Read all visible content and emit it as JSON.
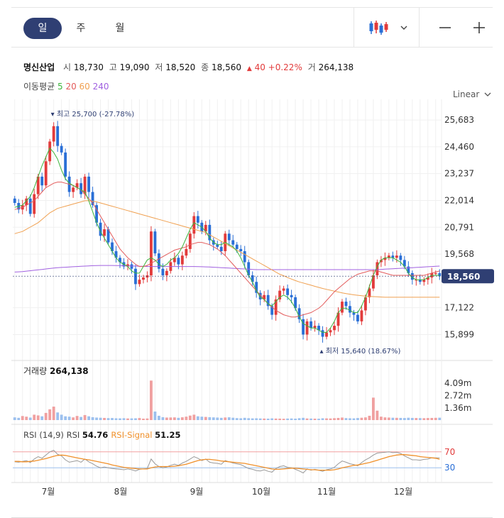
{
  "toolbar": {
    "tabs": [
      {
        "label": "일",
        "active": true
      },
      {
        "label": "주",
        "active": false
      },
      {
        "label": "월",
        "active": false
      }
    ],
    "chart_type_icon": "candlestick-icon",
    "zoom_out_icon": "minus-icon",
    "zoom_in_icon": "plus-icon"
  },
  "stock": {
    "name": "명신산업",
    "open_label": "시",
    "open": "18,730",
    "high_label": "고",
    "high": "19,090",
    "low_label": "저",
    "low": "18,520",
    "close_label": "종",
    "close": "18,560",
    "change": "40",
    "change_pct": "+0.22%",
    "volume_label": "거",
    "volume": "264,138"
  },
  "ma_legend": {
    "label": "이동평균",
    "items": [
      {
        "period": "5",
        "color": "#3cb43c"
      },
      {
        "period": "20",
        "color": "#e35b5b"
      },
      {
        "period": "60",
        "color": "#f0a050"
      },
      {
        "period": "240",
        "color": "#a060e0"
      }
    ]
  },
  "scale_mode": "Linear",
  "colors": {
    "up": "#e23b3b",
    "down": "#2a6fd6",
    "price_tag": "#2f3f73",
    "rsi": "#999999",
    "rsi_signal": "#f0902a"
  },
  "chart_data": {
    "type": "candlestick",
    "x_axis_labels": [
      "7월",
      "8월",
      "9월",
      "10월",
      "11월",
      "12월"
    ],
    "y_ticks": [
      "25,683",
      "24,460",
      "23,237",
      "22,014",
      "20,791",
      "19,568",
      "17,122",
      "15,899"
    ],
    "y_tick_values": [
      25683,
      24460,
      23237,
      22014,
      20791,
      19568,
      17122,
      15899
    ],
    "ylim": [
      15300,
      26300
    ],
    "current_price_label": "18,560",
    "current_price": 18560,
    "max_annotation": "최고 25,700 (-27.78%)",
    "min_annotation": "최저 15,640 (18.67%)",
    "close_series": [
      21900,
      21600,
      21800,
      22100,
      21400,
      22300,
      23100,
      22700,
      23800,
      24700,
      25400,
      24500,
      24200,
      23100,
      22400,
      22600,
      22800,
      22300,
      23100,
      22400,
      21800,
      21000,
      20400,
      20700,
      20100,
      19700,
      19400,
      19200,
      19000,
      19100,
      18900,
      18200,
      18400,
      18500,
      18600,
      20600,
      19600,
      18900,
      18600,
      18800,
      19200,
      19400,
      19100,
      19500,
      19800,
      20500,
      21300,
      21000,
      20600,
      20900,
      20200,
      20000,
      19900,
      19700,
      20500,
      20200,
      20000,
      19800,
      19700,
      19200,
      18600,
      18300,
      17800,
      17500,
      17700,
      17200,
      16800,
      17500,
      17900,
      18000,
      17700,
      17600,
      17100,
      16600,
      15900,
      16500,
      16200,
      16300,
      16100,
      15800,
      16000,
      16100,
      16300,
      16900,
      17400,
      17200,
      16900,
      16800,
      16500,
      17000,
      17600,
      18000,
      18600,
      19200,
      19300,
      19400,
      19500,
      19400,
      19500,
      19300,
      19000,
      18700,
      18400,
      18400,
      18300,
      18400,
      18500,
      18700,
      18700,
      18560
    ],
    "ma5": [
      21700,
      21750,
      21800,
      22000,
      22200,
      22600,
      23100,
      23600,
      24000,
      24400,
      24200,
      23900,
      23400,
      23000,
      22800,
      22700,
      22600,
      22500,
      22400,
      22000,
      21500,
      21000,
      20600,
      20300,
      20000,
      19700,
      19400,
      19200,
      19100,
      19000,
      18800,
      18700,
      18700,
      19000,
      19300,
      19400,
      19300,
      19100,
      19000,
      19100,
      19300,
      19400,
      19600,
      19900,
      20300,
      20700,
      21000,
      20900,
      20800,
      20600,
      20300,
      20100,
      20000,
      20000,
      20100,
      20000,
      19900,
      19700,
      19400,
      19000,
      18600,
      18300,
      17900,
      17600,
      17500,
      17300,
      17200,
      17400,
      17600,
      17700,
      17600,
      17400,
      17100,
      16700,
      16400,
      16300,
      16200,
      16200,
      16100,
      16000,
      16000,
      16200,
      16500,
      16900,
      17100,
      17100,
      17000,
      16900,
      16900,
      17200,
      17600,
      18100,
      18600,
      19000,
      19300,
      19400,
      19400,
      19400,
      19300,
      19200,
      19000,
      18700,
      18500,
      18400,
      18400,
      18400,
      18500,
      18600,
      18600,
      18600
    ],
    "ma20": [
      21600,
      21650,
      21700,
      21800,
      21900,
      22000,
      22200,
      22400,
      22600,
      22700,
      22800,
      22850,
      22850,
      22800,
      22750,
      22700,
      22600,
      22500,
      22300,
      22100,
      21900,
      21600,
      21300,
      21000,
      20700,
      20400,
      20100,
      19800,
      19600,
      19400,
      19250,
      19100,
      19000,
      19000,
      19050,
      19150,
      19250,
      19350,
      19450,
      19550,
      19650,
      19750,
      19800,
      19850,
      19900,
      20000,
      20050,
      20100,
      20100,
      20050,
      20000,
      19900,
      19800,
      19650,
      19500,
      19300,
      19100,
      18900,
      18700,
      18500,
      18300,
      18100,
      17900,
      17700,
      17500,
      17300,
      17150,
      17000,
      16900,
      16800,
      16750,
      16700,
      16700,
      16750,
      16800,
      16850,
      16900,
      17000,
      17100,
      17250,
      17450,
      17650,
      17850,
      18000,
      18150,
      18300,
      18450,
      18550,
      18650,
      18700,
      18750,
      18800,
      18800,
      18800,
      18750,
      18700,
      18650,
      18600,
      18600,
      18600,
      18600,
      18600,
      18600,
      18600,
      18600,
      18600,
      18650,
      18700,
      18750,
      18800
    ],
    "ma60": [
      20500,
      20550,
      20600,
      20700,
      20800,
      20900,
      21000,
      21150,
      21300,
      21450,
      21550,
      21650,
      21700,
      21750,
      21800,
      21850,
      21900,
      21950,
      22000,
      22000,
      21980,
      21950,
      21900,
      21850,
      21800,
      21750,
      21700,
      21650,
      21600,
      21550,
      21500,
      21450,
      21400,
      21350,
      21300,
      21250,
      21200,
      21150,
      21100,
      21050,
      21000,
      20950,
      20900,
      20850,
      20800,
      20750,
      20700,
      20650,
      20600,
      20550,
      20450,
      20350,
      20250,
      20150,
      20050,
      19950,
      19850,
      19750,
      19650,
      19550,
      19450,
      19350,
      19250,
      19150,
      19050,
      18950,
      18850,
      18750,
      18650,
      18580,
      18500,
      18430,
      18360,
      18300,
      18250,
      18200,
      18150,
      18100,
      18050,
      18000,
      17960,
      17920,
      17880,
      17840,
      17800,
      17770,
      17740,
      17710,
      17690,
      17670,
      17650,
      17640,
      17630,
      17620,
      17610,
      17600,
      17600,
      17600,
      17600,
      17600,
      17600,
      17600,
      17600,
      17600,
      17600,
      17600,
      17600,
      17600,
      17600,
      17600
    ],
    "ma240": [
      18750,
      18760,
      18770,
      18790,
      18810,
      18830,
      18850,
      18870,
      18890,
      18910,
      18930,
      18950,
      18960,
      18970,
      18980,
      18990,
      19000,
      19010,
      19020,
      19030,
      19040,
      19045,
      19050,
      19050,
      19050,
      19050,
      19045,
      19040,
      19035,
      19030,
      19025,
      19020,
      19015,
      19010,
      19005,
      19000,
      19000,
      19000,
      19000,
      19000,
      19000,
      19000,
      19000,
      19000,
      19000,
      19000,
      19000,
      18995,
      18990,
      18985,
      18980,
      18970,
      18960,
      18950,
      18940,
      18930,
      18920,
      18910,
      18900,
      18890,
      18880,
      18870,
      18860,
      18860,
      18860,
      18860,
      18860,
      18860,
      18860,
      18860,
      18860,
      18860,
      18860,
      18860,
      18860,
      18860,
      18860,
      18860,
      18860,
      18860,
      18860,
      18860,
      18860,
      18860,
      18860,
      18860,
      18860,
      18860,
      18860,
      18860,
      18860,
      18860,
      18860,
      18860,
      18870,
      18880,
      18890,
      18900,
      18910,
      18920,
      18930,
      18940,
      18950,
      18960,
      18970,
      18980,
      18990,
      19000,
      19010,
      19020
    ],
    "volume": {
      "label": "거래량",
      "value": "264,138",
      "y_ticks": [
        "4.09m",
        "2.72m",
        "1.36m"
      ],
      "y_tick_values": [
        4090000,
        2720000,
        1360000
      ],
      "ymax": 4900000,
      "values": [
        300000,
        250000,
        450000,
        380000,
        280000,
        600000,
        520000,
        420000,
        800000,
        1200000,
        1500000,
        850000,
        600000,
        420000,
        380000,
        300000,
        460000,
        350000,
        560000,
        420000,
        320000,
        280000,
        260000,
        240000,
        220000,
        230000,
        200000,
        190000,
        210000,
        180000,
        190000,
        200000,
        230000,
        160000,
        180000,
        4400000,
        950000,
        480000,
        320000,
        280000,
        290000,
        300000,
        250000,
        310000,
        380000,
        500000,
        600000,
        420000,
        380000,
        350000,
        320000,
        300000,
        280000,
        250000,
        290000,
        310000,
        260000,
        220000,
        200000,
        250000,
        210000,
        190000,
        200000,
        180000,
        170000,
        160000,
        190000,
        170000,
        160000,
        150000,
        170000,
        180000,
        160000,
        210000,
        250000,
        180000,
        170000,
        160000,
        150000,
        200000,
        190000,
        180000,
        210000,
        240000,
        280000,
        220000,
        200000,
        190000,
        230000,
        260000,
        300000,
        480000,
        2500000,
        1050000,
        380000,
        300000,
        280000,
        260000,
        250000,
        240000,
        230000,
        260000,
        240000,
        230000,
        220000,
        210000,
        230000,
        240000,
        250000,
        264138
      ]
    },
    "rsi": {
      "label": "RSI (14,9)",
      "rsi_label": "RSI",
      "rsi_value": "54.76",
      "signal_label": "RSI-Signal",
      "signal_value": "51.25",
      "y_ticks": [
        "70",
        "30"
      ],
      "y_tick_values": [
        70,
        30
      ],
      "ylim": [
        0,
        100
      ],
      "rsi_values": [
        45,
        44,
        46,
        48,
        43,
        52,
        58,
        54,
        62,
        70,
        74,
        64,
        60,
        50,
        44,
        46,
        48,
        44,
        52,
        45,
        40,
        34,
        30,
        32,
        30,
        28,
        27,
        26,
        25,
        27,
        25,
        22,
        26,
        27,
        28,
        52,
        40,
        33,
        30,
        32,
        36,
        39,
        36,
        42,
        46,
        52,
        58,
        54,
        48,
        52,
        44,
        42,
        41,
        39,
        48,
        45,
        42,
        40,
        38,
        33,
        28,
        26,
        23,
        22,
        25,
        21,
        19,
        28,
        33,
        35,
        31,
        30,
        26,
        22,
        17,
        27,
        24,
        26,
        24,
        21,
        25,
        27,
        31,
        40,
        47,
        44,
        40,
        38,
        35,
        43,
        50,
        55,
        62,
        67,
        68,
        69,
        70,
        68,
        69,
        66,
        60,
        55,
        50,
        50,
        49,
        51,
        52,
        55,
        55,
        54.76
      ],
      "signal_values": [
        46,
        46,
        45,
        45,
        46,
        47,
        49,
        51,
        53,
        56,
        59,
        61,
        62,
        61,
        59,
        57,
        55,
        53,
        51,
        50,
        48,
        46,
        44,
        42,
        40,
        37,
        35,
        33,
        31,
        30,
        29,
        28,
        27,
        27,
        27,
        30,
        32,
        33,
        33,
        33,
        33,
        34,
        35,
        37,
        39,
        42,
        45,
        48,
        50,
        51,
        51,
        50,
        49,
        47,
        46,
        45,
        44,
        43,
        42,
        41,
        39,
        37,
        35,
        33,
        31,
        29,
        27,
        26,
        26,
        27,
        28,
        29,
        29,
        28,
        27,
        26,
        25,
        25,
        24,
        24,
        24,
        24,
        25,
        27,
        30,
        32,
        34,
        36,
        37,
        39,
        41,
        43,
        46,
        49,
        52,
        55,
        58,
        60,
        62,
        63,
        63,
        62,
        61,
        60,
        58,
        57,
        56,
        55,
        54,
        51.25
      ]
    }
  }
}
